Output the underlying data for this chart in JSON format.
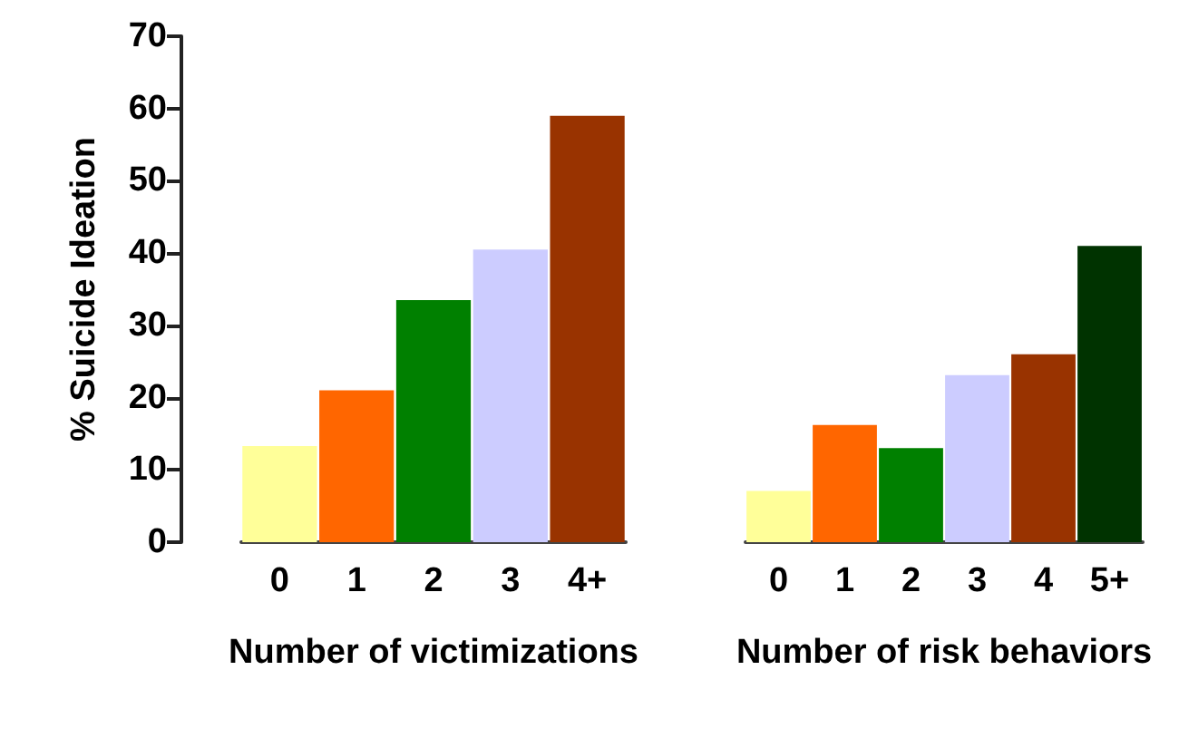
{
  "chart_data": [
    {
      "type": "bar",
      "ylabel": "% Suicide Ideation",
      "xlabel": "Number of victimizations",
      "categories": [
        "0",
        "1",
        "2",
        "3",
        "4+"
      ],
      "values": [
        13.3,
        21,
        33.5,
        40.5,
        59
      ],
      "colors": [
        "#ffff99",
        "#ff6600",
        "#008000",
        "#ccccff",
        "#993300"
      ],
      "ylim": [
        0,
        70
      ],
      "yticks": [
        0,
        10,
        20,
        30,
        40,
        50,
        60,
        70
      ],
      "grid": false
    },
    {
      "type": "bar",
      "xlabel": "Number of risk behaviors",
      "categories": [
        "0",
        "1",
        "2",
        "3",
        "4",
        "5+"
      ],
      "values": [
        7.1,
        16.2,
        13,
        23.1,
        26,
        41
      ],
      "colors": [
        "#ffff99",
        "#ff6600",
        "#008000",
        "#ccccff",
        "#993300",
        "#003300"
      ],
      "ylim": [
        0,
        70
      ],
      "yticks": [
        0,
        10,
        20,
        30,
        40,
        50,
        60,
        70
      ],
      "tick_labels": "x",
      "grid": false
    }
  ]
}
